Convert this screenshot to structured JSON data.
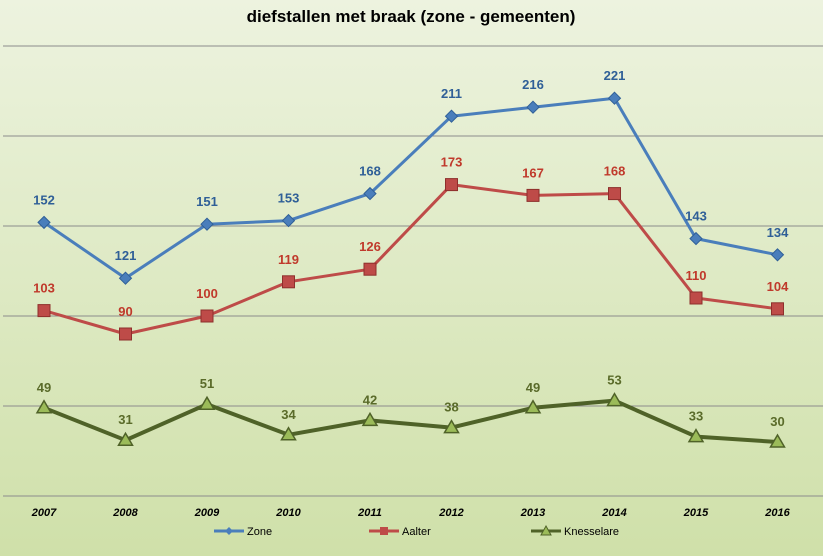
{
  "chart_data": {
    "type": "line",
    "title": "diefstallen met braak (zone - gemeenten)",
    "categories": [
      "2007",
      "2008",
      "2009",
      "2010",
      "2011",
      "2012",
      "2013",
      "2014",
      "2015",
      "2016"
    ],
    "ylim": [
      0,
      250
    ],
    "grid": true,
    "legend": "bottom",
    "series": [
      {
        "name": "Zone",
        "color": "#4a7ebb",
        "label_color": "#2f5f97",
        "marker": "diamond",
        "values": [
          152,
          121,
          151,
          153,
          168,
          211,
          216,
          221,
          143,
          134
        ]
      },
      {
        "name": "Aalter",
        "color": "#be4b48",
        "label_color": "#c0392b",
        "marker": "square",
        "values": [
          103,
          90,
          100,
          119,
          126,
          173,
          167,
          168,
          110,
          104
        ]
      },
      {
        "name": "Knesselare",
        "color": "#4f6228",
        "label_color": "#5a6b2a",
        "marker": "triangle",
        "values": [
          49,
          31,
          51,
          34,
          42,
          38,
          49,
          53,
          33,
          30
        ]
      }
    ]
  }
}
